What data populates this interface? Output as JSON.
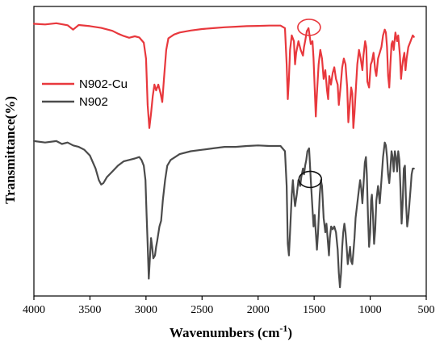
{
  "chart_data": {
    "type": "line",
    "xlabel": "Wavenumbers (cm",
    "xlabel_sup": "-1",
    "xlabel_close": ")",
    "ylabel": "Transmittance(%)",
    "xlim": [
      4000,
      500
    ],
    "xticks": [
      "4000",
      "3500",
      "3000",
      "2500",
      "2000",
      "1500",
      "1000",
      "500"
    ],
    "xtick_values": [
      4000,
      3500,
      3000,
      2500,
      2000,
      1500,
      1000,
      500
    ],
    "y_ticks_shown": false,
    "ylim": [
      0,
      100
    ],
    "legend_position": "left",
    "series": [
      {
        "name": "N902-Cu",
        "color": "#e8383d",
        "points": [
          [
            4000,
            94
          ],
          [
            3900,
            93.8
          ],
          [
            3800,
            94.2
          ],
          [
            3700,
            93.5
          ],
          [
            3650,
            92
          ],
          [
            3600,
            93.6
          ],
          [
            3500,
            93.2
          ],
          [
            3400,
            92.6
          ],
          [
            3300,
            91.6
          ],
          [
            3250,
            90.6
          ],
          [
            3200,
            89.8
          ],
          [
            3150,
            89.2
          ],
          [
            3100,
            89.7
          ],
          [
            3060,
            89.3
          ],
          [
            3020,
            87.5
          ],
          [
            3000,
            82
          ],
          [
            2985,
            66
          ],
          [
            2970,
            58
          ],
          [
            2955,
            63
          ],
          [
            2940,
            69
          ],
          [
            2925,
            73
          ],
          [
            2910,
            71
          ],
          [
            2890,
            73
          ],
          [
            2870,
            70
          ],
          [
            2855,
            67
          ],
          [
            2840,
            75
          ],
          [
            2820,
            85
          ],
          [
            2800,
            89
          ],
          [
            2750,
            90.3
          ],
          [
            2700,
            91
          ],
          [
            2600,
            91.7
          ],
          [
            2500,
            92.2
          ],
          [
            2400,
            92.5
          ],
          [
            2300,
            92.8
          ],
          [
            2200,
            93
          ],
          [
            2100,
            93.2
          ],
          [
            2000,
            93.3
          ],
          [
            1900,
            93.4
          ],
          [
            1800,
            93.4
          ],
          [
            1760,
            92.5
          ],
          [
            1745,
            80
          ],
          [
            1735,
            68
          ],
          [
            1725,
            75
          ],
          [
            1715,
            85
          ],
          [
            1700,
            90
          ],
          [
            1680,
            88
          ],
          [
            1670,
            80
          ],
          [
            1660,
            84
          ],
          [
            1640,
            88
          ],
          [
            1620,
            85
          ],
          [
            1600,
            83
          ],
          [
            1590,
            86
          ],
          [
            1580,
            88
          ],
          [
            1565,
            91.5
          ],
          [
            1550,
            92.5
          ],
          [
            1530,
            87
          ],
          [
            1515,
            88
          ],
          [
            1505,
            82
          ],
          [
            1495,
            72
          ],
          [
            1485,
            62
          ],
          [
            1475,
            70
          ],
          [
            1460,
            80
          ],
          [
            1445,
            85
          ],
          [
            1430,
            82
          ],
          [
            1415,
            75
          ],
          [
            1400,
            78
          ],
          [
            1385,
            71
          ],
          [
            1375,
            68
          ],
          [
            1365,
            76
          ],
          [
            1350,
            73
          ],
          [
            1335,
            77
          ],
          [
            1320,
            79
          ],
          [
            1305,
            75
          ],
          [
            1290,
            73
          ],
          [
            1280,
            66
          ],
          [
            1265,
            72
          ],
          [
            1250,
            79
          ],
          [
            1235,
            82
          ],
          [
            1220,
            80
          ],
          [
            1205,
            72
          ],
          [
            1195,
            60
          ],
          [
            1185,
            65
          ],
          [
            1170,
            72
          ],
          [
            1160,
            70
          ],
          [
            1150,
            58
          ],
          [
            1140,
            63
          ],
          [
            1130,
            70
          ],
          [
            1115,
            80
          ],
          [
            1100,
            85
          ],
          [
            1085,
            82
          ],
          [
            1070,
            78
          ],
          [
            1060,
            83
          ],
          [
            1045,
            88
          ],
          [
            1035,
            86
          ],
          [
            1025,
            74
          ],
          [
            1010,
            72
          ],
          [
            995,
            80
          ],
          [
            985,
            81
          ],
          [
            970,
            84
          ],
          [
            955,
            78
          ],
          [
            945,
            76
          ],
          [
            930,
            82
          ],
          [
            915,
            84
          ],
          [
            900,
            86
          ],
          [
            885,
            90
          ],
          [
            870,
            92
          ],
          [
            860,
            91
          ],
          [
            850,
            86
          ],
          [
            840,
            76
          ],
          [
            830,
            72
          ],
          [
            820,
            80
          ],
          [
            810,
            87
          ],
          [
            800,
            88
          ],
          [
            790,
            85
          ],
          [
            775,
            91
          ],
          [
            760,
            88
          ],
          [
            750,
            90
          ],
          [
            735,
            83
          ],
          [
            725,
            75
          ],
          [
            715,
            79
          ],
          [
            705,
            82
          ],
          [
            695,
            84
          ],
          [
            685,
            78
          ],
          [
            675,
            82
          ],
          [
            660,
            86
          ],
          [
            640,
            88
          ],
          [
            620,
            90
          ],
          [
            610,
            89.5
          ]
        ]
      },
      {
        "name": "N902",
        "color": "#4b4b4b",
        "points": [
          [
            4000,
            53.5
          ],
          [
            3900,
            53
          ],
          [
            3800,
            53.5
          ],
          [
            3750,
            52.5
          ],
          [
            3700,
            53
          ],
          [
            3650,
            52
          ],
          [
            3600,
            51.5
          ],
          [
            3550,
            50.5
          ],
          [
            3500,
            48.5
          ],
          [
            3450,
            44
          ],
          [
            3420,
            40
          ],
          [
            3400,
            38.5
          ],
          [
            3380,
            39
          ],
          [
            3350,
            41
          ],
          [
            3300,
            43
          ],
          [
            3250,
            45
          ],
          [
            3200,
            46.5
          ],
          [
            3150,
            47
          ],
          [
            3100,
            47.5
          ],
          [
            3060,
            48
          ],
          [
            3040,
            47
          ],
          [
            3020,
            45
          ],
          [
            3005,
            40
          ],
          [
            2995,
            28
          ],
          [
            2985,
            18
          ],
          [
            2975,
            6
          ],
          [
            2965,
            13
          ],
          [
            2955,
            20
          ],
          [
            2945,
            17
          ],
          [
            2935,
            13
          ],
          [
            2920,
            14
          ],
          [
            2910,
            17
          ],
          [
            2900,
            19
          ],
          [
            2880,
            24
          ],
          [
            2865,
            26
          ],
          [
            2850,
            33
          ],
          [
            2830,
            40
          ],
          [
            2810,
            45
          ],
          [
            2780,
            47
          ],
          [
            2740,
            48
          ],
          [
            2700,
            49
          ],
          [
            2600,
            50
          ],
          [
            2500,
            50.5
          ],
          [
            2400,
            51
          ],
          [
            2300,
            51.5
          ],
          [
            2200,
            51.5
          ],
          [
            2100,
            51.8
          ],
          [
            2000,
            52
          ],
          [
            1900,
            51.8
          ],
          [
            1800,
            51.8
          ],
          [
            1760,
            50
          ],
          [
            1745,
            38
          ],
          [
            1735,
            18
          ],
          [
            1725,
            14
          ],
          [
            1715,
            22
          ],
          [
            1700,
            35
          ],
          [
            1690,
            40
          ],
          [
            1680,
            35
          ],
          [
            1670,
            31
          ],
          [
            1655,
            35
          ],
          [
            1640,
            40
          ],
          [
            1625,
            38
          ],
          [
            1615,
            41
          ],
          [
            1600,
            44
          ],
          [
            1590,
            42
          ],
          [
            1580,
            45
          ],
          [
            1570,
            47
          ],
          [
            1560,
            50
          ],
          [
            1545,
            51
          ],
          [
            1530,
            40
          ],
          [
            1515,
            30
          ],
          [
            1505,
            24
          ],
          [
            1495,
            28
          ],
          [
            1485,
            22
          ],
          [
            1475,
            16
          ],
          [
            1465,
            22
          ],
          [
            1450,
            35
          ],
          [
            1440,
            40
          ],
          [
            1430,
            38
          ],
          [
            1415,
            27
          ],
          [
            1400,
            22
          ],
          [
            1390,
            25
          ],
          [
            1378,
            19
          ],
          [
            1368,
            14
          ],
          [
            1360,
            20
          ],
          [
            1348,
            24
          ],
          [
            1335,
            23
          ],
          [
            1320,
            24
          ],
          [
            1305,
            22
          ],
          [
            1290,
            16
          ],
          [
            1280,
            8
          ],
          [
            1270,
            3
          ],
          [
            1260,
            8
          ],
          [
            1250,
            17
          ],
          [
            1240,
            22
          ],
          [
            1230,
            25
          ],
          [
            1220,
            22
          ],
          [
            1210,
            17
          ],
          [
            1200,
            11
          ],
          [
            1190,
            14
          ],
          [
            1180,
            17
          ],
          [
            1170,
            12
          ],
          [
            1160,
            11
          ],
          [
            1150,
            15
          ],
          [
            1140,
            20
          ],
          [
            1130,
            27
          ],
          [
            1115,
            32
          ],
          [
            1100,
            37
          ],
          [
            1090,
            40
          ],
          [
            1080,
            37
          ],
          [
            1070,
            32
          ],
          [
            1060,
            38
          ],
          [
            1048,
            46
          ],
          [
            1038,
            48
          ],
          [
            1030,
            42
          ],
          [
            1020,
            28
          ],
          [
            1010,
            17
          ],
          [
            1000,
            22
          ],
          [
            992,
            33
          ],
          [
            985,
            35
          ],
          [
            975,
            28
          ],
          [
            965,
            18
          ],
          [
            955,
            23
          ],
          [
            945,
            33
          ],
          [
            930,
            38
          ],
          [
            915,
            32
          ],
          [
            900,
            40
          ],
          [
            885,
            48
          ],
          [
            870,
            53
          ],
          [
            860,
            52
          ],
          [
            850,
            48
          ],
          [
            840,
            42
          ],
          [
            830,
            39
          ],
          [
            820,
            44
          ],
          [
            810,
            50
          ],
          [
            800,
            48
          ],
          [
            790,
            43
          ],
          [
            780,
            50
          ],
          [
            770,
            48
          ],
          [
            760,
            43
          ],
          [
            750,
            50
          ],
          [
            740,
            47
          ],
          [
            730,
            37
          ],
          [
            720,
            25
          ],
          [
            710,
            32
          ],
          [
            700,
            44
          ],
          [
            690,
            45
          ],
          [
            680,
            32
          ],
          [
            670,
            24
          ],
          [
            660,
            27
          ],
          [
            650,
            32
          ],
          [
            640,
            37
          ],
          [
            630,
            42
          ],
          [
            620,
            44
          ],
          [
            610,
            44
          ]
        ]
      }
    ],
    "annotations": [
      {
        "type": "ellipse",
        "target_series": "N902-Cu",
        "color": "#e8383d",
        "at_x": 1545
      },
      {
        "type": "ellipse",
        "target_series": "N902",
        "color": "#111111",
        "at_x": 1535
      }
    ]
  }
}
